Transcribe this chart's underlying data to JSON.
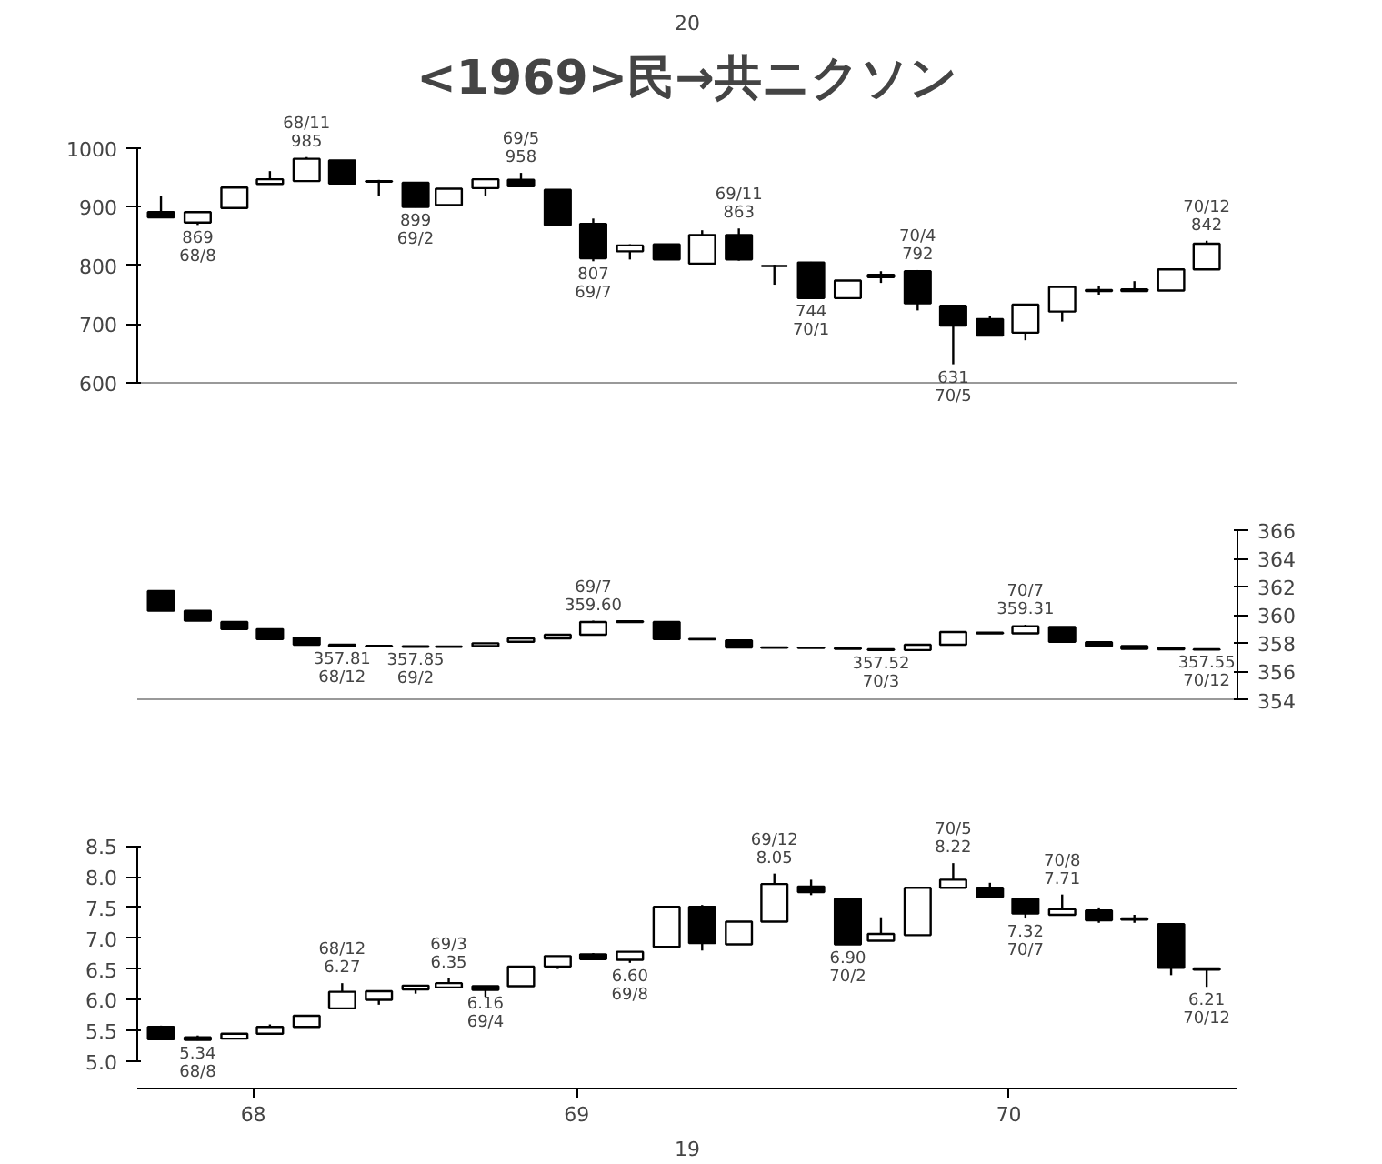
{
  "chart_data": [
    {
      "type": "candlestick",
      "title": "<1969>民→共ニクソン",
      "annotations": [
        "20",
        {
          "text": "68/11\n985",
          "x": "1968-11-15",
          "y": 985
        },
        {
          "text": "869\n68/8",
          "x": "1968-08-15",
          "y": 869
        },
        {
          "text": "899\n69/2",
          "x": "1969-02-15",
          "y": 899
        },
        {
          "text": "69/5\n958",
          "x": "1969-05-15",
          "y": 958
        },
        {
          "text": "807\n69/7",
          "x": "1969-07-15",
          "y": 807
        },
        {
          "text": "69/11\n863",
          "x": "1969-11-15",
          "y": 863
        },
        {
          "text": "744\n70/1",
          "x": "1970-01-15",
          "y": 744
        },
        {
          "text": "70/4\n792",
          "x": "1970-04-15",
          "y": 792
        },
        {
          "text": "631\n70/5",
          "x": "1970-05-15",
          "y": 631
        },
        {
          "text": "70/12\n842",
          "x": "1970-12-15",
          "y": 842
        }
      ],
      "x": [
        "1968-07-15",
        "1968-08-15",
        "1968-09-15",
        "1968-10-15",
        "1968-11-15",
        "1968-12-15",
        "1969-01-15",
        "1969-02-15",
        "1969-03-15",
        "1969-04-15",
        "1969-05-15",
        "1969-06-15",
        "1969-07-15",
        "1969-08-15",
        "1969-09-15",
        "1969-10-15",
        "1969-11-15",
        "1969-12-15",
        "1970-01-15",
        "1970-02-15",
        "1970-03-15",
        "1970-04-15",
        "1970-05-15",
        "1970-06-15",
        "1970-07-15",
        "1970-08-15",
        "1970-09-15",
        "1970-10-15",
        "1970-11-15",
        "1970-12-15"
      ],
      "ohlc": [
        [
          891,
          919,
          881,
          882
        ],
        [
          873,
          891,
          869,
          891
        ],
        [
          898,
          935,
          896,
          933
        ],
        [
          939,
          961,
          939,
          947
        ],
        [
          944,
          985,
          944,
          982
        ],
        [
          979,
          979,
          938,
          940
        ],
        [
          944,
          946,
          919,
          943
        ],
        [
          941,
          941,
          899,
          900
        ],
        [
          903,
          931,
          903,
          931
        ],
        [
          932,
          947,
          919,
          947
        ],
        [
          946,
          958,
          935,
          935
        ],
        [
          929,
          929,
          869,
          869
        ],
        [
          871,
          880,
          807,
          812
        ],
        [
          824,
          836,
          810,
          834
        ],
        [
          836,
          836,
          810,
          810
        ],
        [
          803,
          860,
          803,
          852
        ],
        [
          852,
          863,
          808,
          810
        ],
        [
          799,
          801,
          767,
          799
        ],
        [
          805,
          806,
          744,
          744
        ],
        [
          744,
          774,
          744,
          774
        ],
        [
          780,
          790,
          770,
          784
        ],
        [
          790,
          792,
          723,
          735
        ],
        [
          731,
          731,
          631,
          697
        ],
        [
          708,
          713,
          680,
          680
        ],
        [
          685,
          733,
          672,
          733
        ],
        [
          721,
          763,
          704,
          763
        ],
        [
          756,
          764,
          750,
          758
        ],
        [
          759,
          773,
          756,
          756
        ],
        [
          757,
          793,
          757,
          793
        ],
        [
          793,
          842,
          793,
          837
        ]
      ],
      "xlim": [
        "1968-06-25",
        "1971-01-10"
      ],
      "ylim": [
        600,
        1000
      ],
      "yticks": [
        600,
        700,
        800,
        900,
        1000
      ],
      "tick_labels": "y"
    },
    {
      "type": "candlestick",
      "annotations": [
        {
          "text": "357.81\n68/12",
          "x": "1968-12-15",
          "y": 357.81
        },
        {
          "text": "357.85\n69/2",
          "x": "1969-02-15",
          "y": 357.75
        },
        {
          "text": "69/7\n359.60",
          "x": "1969-07-15",
          "y": 359.6
        },
        {
          "text": "357.52\n70/3",
          "x": "1970-03-15",
          "y": 357.52
        },
        {
          "text": "70/7\n359.31",
          "x": "1970-07-15",
          "y": 359.31
        },
        {
          "text": "357.55\n70/12",
          "x": "1970-12-15",
          "y": 357.55
        }
      ],
      "x": [
        "1968-07-15",
        "1968-08-15",
        "1968-09-15",
        "1968-10-15",
        "1968-11-15",
        "1968-12-15",
        "1969-01-15",
        "1969-02-15",
        "1969-03-15",
        "1969-04-15",
        "1969-05-15",
        "1969-06-15",
        "1969-07-15",
        "1969-08-15",
        "1969-09-15",
        "1969-10-15",
        "1969-11-15",
        "1969-12-15",
        "1970-01-15",
        "1970-02-15",
        "1970-03-15",
        "1970-04-15",
        "1970-05-15",
        "1970-06-15",
        "1970-07-15",
        "1970-08-15",
        "1970-09-15",
        "1970-10-15",
        "1970-11-15",
        "1970-12-15"
      ],
      "ohlc": [
        [
          361.7,
          361.7,
          360.3,
          360.3
        ],
        [
          360.3,
          360.3,
          359.6,
          359.6
        ],
        [
          359.5,
          359.5,
          359.0,
          359.0
        ],
        [
          359.0,
          359.0,
          358.3,
          358.3
        ],
        [
          358.4,
          358.4,
          357.9,
          357.9
        ],
        [
          357.9,
          357.9,
          357.81,
          357.81
        ],
        [
          357.82,
          357.82,
          357.78,
          357.78
        ],
        [
          357.78,
          357.78,
          357.75,
          357.75
        ],
        [
          357.75,
          357.77,
          357.75,
          357.77
        ],
        [
          357.8,
          358.0,
          357.8,
          358.0
        ],
        [
          358.1,
          358.35,
          358.1,
          358.35
        ],
        [
          358.35,
          358.6,
          358.35,
          358.6
        ],
        [
          358.6,
          359.6,
          358.6,
          359.5
        ],
        [
          359.55,
          359.55,
          359.5,
          359.5
        ],
        [
          359.5,
          359.5,
          358.3,
          358.3
        ],
        [
          358.3,
          358.32,
          358.28,
          358.28
        ],
        [
          358.2,
          358.2,
          357.7,
          357.7
        ],
        [
          357.7,
          357.72,
          357.68,
          357.68
        ],
        [
          357.68,
          357.7,
          357.66,
          357.66
        ],
        [
          357.65,
          357.65,
          357.6,
          357.6
        ],
        [
          357.58,
          357.58,
          357.52,
          357.52
        ],
        [
          357.52,
          357.9,
          357.52,
          357.9
        ],
        [
          357.9,
          358.8,
          357.9,
          358.8
        ],
        [
          358.75,
          358.75,
          358.7,
          358.7
        ],
        [
          358.7,
          359.31,
          358.7,
          359.2
        ],
        [
          359.15,
          359.15,
          358.1,
          358.1
        ],
        [
          358.07,
          358.07,
          357.8,
          357.8
        ],
        [
          357.8,
          357.8,
          357.6,
          357.6
        ],
        [
          357.65,
          357.65,
          357.57,
          357.57
        ],
        [
          357.57,
          357.57,
          357.55,
          357.55
        ]
      ],
      "xlim": [
        "1968-06-25",
        "1971-01-10"
      ],
      "ylim": [
        354,
        366
      ],
      "yticks": [
        354,
        356,
        358,
        360,
        362,
        364,
        366
      ],
      "tick_labels": "y"
    },
    {
      "type": "candlestick",
      "annotations": [
        "19",
        {
          "text": "68/12\n6.27",
          "x": "1968-12-15",
          "y": 6.27
        },
        {
          "text": "5.34\n68/8",
          "x": "1968-08-15",
          "y": 5.34
        },
        {
          "text": "69/3\n6.35",
          "x": "1969-03-15",
          "y": 6.35
        },
        {
          "text": "6.16\n69/4",
          "x": "1969-04-15",
          "y": 6.16
        },
        {
          "text": "6.60\n69/8",
          "x": "1969-08-15",
          "y": 6.6
        },
        {
          "text": "69/12\n8.05",
          "x": "1969-12-15",
          "y": 8.05
        },
        {
          "text": "6.90\n70/2",
          "x": "1970-02-15",
          "y": 6.9
        },
        {
          "text": "70/5\n8.22",
          "x": "1970-05-15",
          "y": 8.22
        },
        {
          "text": "70/8\n7.71",
          "x": "1970-08-15",
          "y": 7.71
        },
        {
          "text": "7.32\n70/7",
          "x": "1970-07-15",
          "y": 7.32
        },
        {
          "text": "6.21\n70/12",
          "x": "1970-12-15",
          "y": 6.21
        }
      ],
      "x": [
        "1968-07-15",
        "1968-08-15",
        "1968-09-15",
        "1968-10-15",
        "1968-11-15",
        "1968-12-15",
        "1969-01-15",
        "1969-02-15",
        "1969-03-15",
        "1969-04-15",
        "1969-05-15",
        "1969-06-15",
        "1969-07-15",
        "1969-08-15",
        "1969-09-15",
        "1969-10-15",
        "1969-11-15",
        "1969-12-15",
        "1970-01-15",
        "1970-02-15",
        "1970-03-15",
        "1970-04-15",
        "1970-05-15",
        "1970-06-15",
        "1970-07-15",
        "1970-08-15",
        "1970-09-15",
        "1970-10-15",
        "1970-11-15",
        "1970-12-15"
      ],
      "ohlc": [
        [
          5.56,
          5.58,
          5.35,
          5.36
        ],
        [
          5.35,
          5.42,
          5.34,
          5.39
        ],
        [
          5.37,
          5.45,
          5.37,
          5.45
        ],
        [
          5.45,
          5.6,
          5.45,
          5.56
        ],
        [
          5.56,
          5.74,
          5.56,
          5.74
        ],
        [
          5.86,
          6.27,
          5.86,
          6.13
        ],
        [
          6.0,
          6.14,
          5.92,
          6.14
        ],
        [
          6.17,
          6.23,
          6.1,
          6.23
        ],
        [
          6.2,
          6.35,
          6.2,
          6.27
        ],
        [
          6.22,
          6.22,
          6.05,
          6.16
        ],
        [
          6.22,
          6.54,
          6.22,
          6.54
        ],
        [
          6.54,
          6.71,
          6.5,
          6.71
        ],
        [
          6.74,
          6.76,
          6.66,
          6.66
        ],
        [
          6.65,
          6.78,
          6.6,
          6.78
        ],
        [
          6.86,
          7.51,
          6.86,
          7.51
        ],
        [
          7.51,
          7.54,
          6.8,
          6.92
        ],
        [
          6.9,
          7.27,
          6.9,
          7.27
        ],
        [
          7.27,
          8.05,
          7.27,
          7.88
        ],
        [
          7.84,
          7.95,
          7.7,
          7.75
        ],
        [
          7.64,
          7.64,
          6.9,
          6.9
        ],
        [
          6.96,
          7.34,
          6.96,
          7.07
        ],
        [
          7.05,
          7.82,
          7.05,
          7.82
        ],
        [
          7.82,
          8.22,
          7.82,
          7.95
        ],
        [
          7.82,
          7.9,
          7.67,
          7.67
        ],
        [
          7.64,
          7.64,
          7.32,
          7.4
        ],
        [
          7.38,
          7.71,
          7.38,
          7.47
        ],
        [
          7.45,
          7.5,
          7.25,
          7.29
        ],
        [
          7.3,
          7.38,
          7.25,
          7.32
        ],
        [
          7.23,
          7.23,
          6.4,
          6.52
        ],
        [
          6.51,
          6.51,
          6.21,
          6.49
        ]
      ],
      "xlim": [
        "1968-06-25",
        "1971-01-10"
      ],
      "xticks": [
        {
          "value": "1968-10-01",
          "label": "68"
        },
        {
          "value": "1969-07-01",
          "label": "69"
        },
        {
          "value": "1970-07-01",
          "label": "70"
        }
      ],
      "ylim": [
        5.0,
        8.5
      ],
      "yticks": [
        {
          "value": 5.0,
          "label": "5.0"
        },
        5.5,
        {
          "value": 6.0,
          "label": "6.0"
        },
        6.5,
        {
          "value": 7.0,
          "label": "7.0"
        },
        7.5,
        {
          "value": 8.0,
          "label": "8.0"
        },
        8.5
      ]
    }
  ]
}
